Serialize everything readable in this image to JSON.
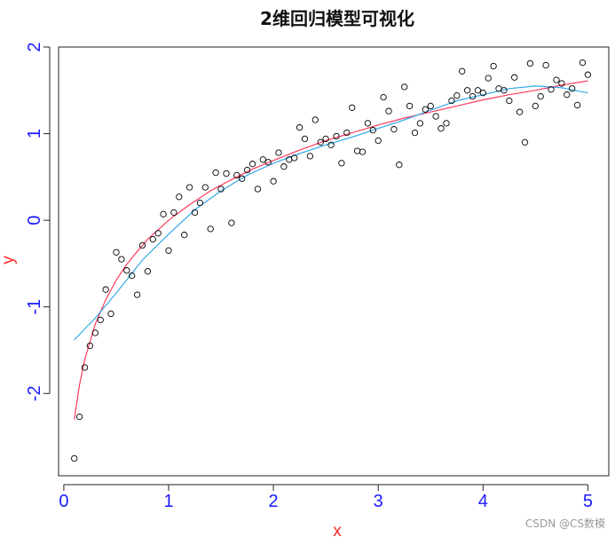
{
  "chart_data": {
    "type": "scatter",
    "title": "2维回归模型可视化",
    "xlabel": "x",
    "ylabel": "y",
    "xlim": [
      -0.05,
      5.2
    ],
    "ylim": [
      -2.95,
      2.0
    ],
    "x_ticks": [
      0,
      1,
      2,
      3,
      4,
      5
    ],
    "y_ticks": [
      -2,
      -1,
      0,
      1,
      2
    ],
    "x_tick_labels": [
      "0",
      "1",
      "2",
      "3",
      "4",
      "5"
    ],
    "y_tick_labels": [
      "-2",
      "-1",
      "0",
      "1",
      "2"
    ],
    "grid": false,
    "legend": "none",
    "colors": {
      "points": "#000000",
      "fit_red": "#ff3b5c",
      "fit_blue": "#35a8e8",
      "ticks": "#1a1aff",
      "axis_labels": "#ff2a2a"
    },
    "points": [
      [
        0.1,
        -2.75
      ],
      [
        0.15,
        -2.27
      ],
      [
        0.2,
        -1.7
      ],
      [
        0.25,
        -1.45
      ],
      [
        0.3,
        -1.3
      ],
      [
        0.35,
        -1.15
      ],
      [
        0.4,
        -0.8
      ],
      [
        0.45,
        -1.08
      ],
      [
        0.5,
        -0.37
      ],
      [
        0.55,
        -0.45
      ],
      [
        0.6,
        -0.58
      ],
      [
        0.65,
        -0.64
      ],
      [
        0.7,
        -0.86
      ],
      [
        0.75,
        -0.29
      ],
      [
        0.8,
        -0.59
      ],
      [
        0.85,
        -0.22
      ],
      [
        0.9,
        -0.15
      ],
      [
        0.95,
        0.07
      ],
      [
        1.0,
        -0.35
      ],
      [
        1.05,
        0.09
      ],
      [
        1.1,
        0.27
      ],
      [
        1.15,
        -0.17
      ],
      [
        1.2,
        0.38
      ],
      [
        1.25,
        0.09
      ],
      [
        1.3,
        0.2
      ],
      [
        1.35,
        0.38
      ],
      [
        1.4,
        -0.1
      ],
      [
        1.45,
        0.55
      ],
      [
        1.5,
        0.36
      ],
      [
        1.55,
        0.54
      ],
      [
        1.6,
        -0.03
      ],
      [
        1.65,
        0.52
      ],
      [
        1.7,
        0.48
      ],
      [
        1.75,
        0.58
      ],
      [
        1.8,
        0.65
      ],
      [
        1.85,
        0.36
      ],
      [
        1.9,
        0.7
      ],
      [
        1.95,
        0.67
      ],
      [
        2.0,
        0.45
      ],
      [
        2.05,
        0.78
      ],
      [
        2.1,
        0.62
      ],
      [
        2.15,
        0.7
      ],
      [
        2.2,
        0.72
      ],
      [
        2.25,
        1.07
      ],
      [
        2.3,
        0.94
      ],
      [
        2.35,
        0.74
      ],
      [
        2.4,
        1.16
      ],
      [
        2.45,
        0.9
      ],
      [
        2.5,
        0.94
      ],
      [
        2.55,
        0.87
      ],
      [
        2.6,
        0.97
      ],
      [
        2.65,
        0.66
      ],
      [
        2.7,
        1.01
      ],
      [
        2.75,
        1.3
      ],
      [
        2.8,
        0.8
      ],
      [
        2.85,
        0.79
      ],
      [
        2.9,
        1.12
      ],
      [
        2.95,
        1.04
      ],
      [
        3.0,
        0.92
      ],
      [
        3.05,
        1.42
      ],
      [
        3.1,
        1.26
      ],
      [
        3.15,
        1.05
      ],
      [
        3.2,
        0.64
      ],
      [
        3.25,
        1.54
      ],
      [
        3.3,
        1.32
      ],
      [
        3.35,
        1.01
      ],
      [
        3.4,
        1.12
      ],
      [
        3.45,
        1.28
      ],
      [
        3.5,
        1.32
      ],
      [
        3.55,
        1.2
      ],
      [
        3.6,
        1.06
      ],
      [
        3.65,
        1.12
      ],
      [
        3.7,
        1.38
      ],
      [
        3.75,
        1.44
      ],
      [
        3.8,
        1.72
      ],
      [
        3.85,
        1.5
      ],
      [
        3.9,
        1.43
      ],
      [
        3.95,
        1.5
      ],
      [
        4.0,
        1.47
      ],
      [
        4.05,
        1.64
      ],
      [
        4.1,
        1.78
      ],
      [
        4.15,
        1.52
      ],
      [
        4.2,
        1.5
      ],
      [
        4.25,
        1.38
      ],
      [
        4.3,
        1.65
      ],
      [
        4.35,
        1.25
      ],
      [
        4.4,
        0.9
      ],
      [
        4.45,
        1.81
      ],
      [
        4.5,
        1.32
      ],
      [
        4.55,
        1.43
      ],
      [
        4.6,
        1.79
      ],
      [
        4.65,
        1.51
      ],
      [
        4.7,
        1.62
      ],
      [
        4.75,
        1.58
      ],
      [
        4.8,
        1.45
      ],
      [
        4.85,
        1.52
      ],
      [
        4.9,
        1.33
      ],
      [
        4.95,
        1.82
      ],
      [
        5.0,
        1.68
      ]
    ],
    "series": [
      {
        "color": "#ff3b5c",
        "x": [
          0.1,
          0.15,
          0.2,
          0.3,
          0.4,
          0.5,
          0.6,
          0.7,
          0.8,
          0.9,
          1.0,
          1.2,
          1.4,
          1.6,
          1.8,
          2.0,
          2.25,
          2.5,
          2.75,
          3.0,
          3.25,
          3.5,
          3.75,
          4.0,
          4.25,
          4.5,
          4.75,
          5.0
        ],
        "values": [
          -2.3,
          -1.9,
          -1.61,
          -1.2,
          -0.92,
          -0.69,
          -0.51,
          -0.36,
          -0.22,
          -0.11,
          0.0,
          0.18,
          0.34,
          0.47,
          0.59,
          0.69,
          0.81,
          0.92,
          1.01,
          1.1,
          1.18,
          1.25,
          1.32,
          1.39,
          1.45,
          1.5,
          1.56,
          1.61
        ]
      },
      {
        "color": "#35a8e8",
        "x": [
          0.1,
          0.3,
          0.5,
          0.75,
          1.0,
          1.25,
          1.5,
          1.75,
          2.0,
          2.25,
          2.5,
          2.75,
          3.0,
          3.25,
          3.5,
          3.75,
          4.0,
          4.25,
          4.5,
          4.75,
          5.0
        ],
        "values": [
          -1.38,
          -1.13,
          -0.84,
          -0.46,
          -0.16,
          0.12,
          0.34,
          0.52,
          0.66,
          0.77,
          0.87,
          0.96,
          1.06,
          1.16,
          1.27,
          1.38,
          1.45,
          1.52,
          1.55,
          1.53,
          1.47
        ]
      }
    ]
  },
  "watermark": "CSDN @CS数模"
}
